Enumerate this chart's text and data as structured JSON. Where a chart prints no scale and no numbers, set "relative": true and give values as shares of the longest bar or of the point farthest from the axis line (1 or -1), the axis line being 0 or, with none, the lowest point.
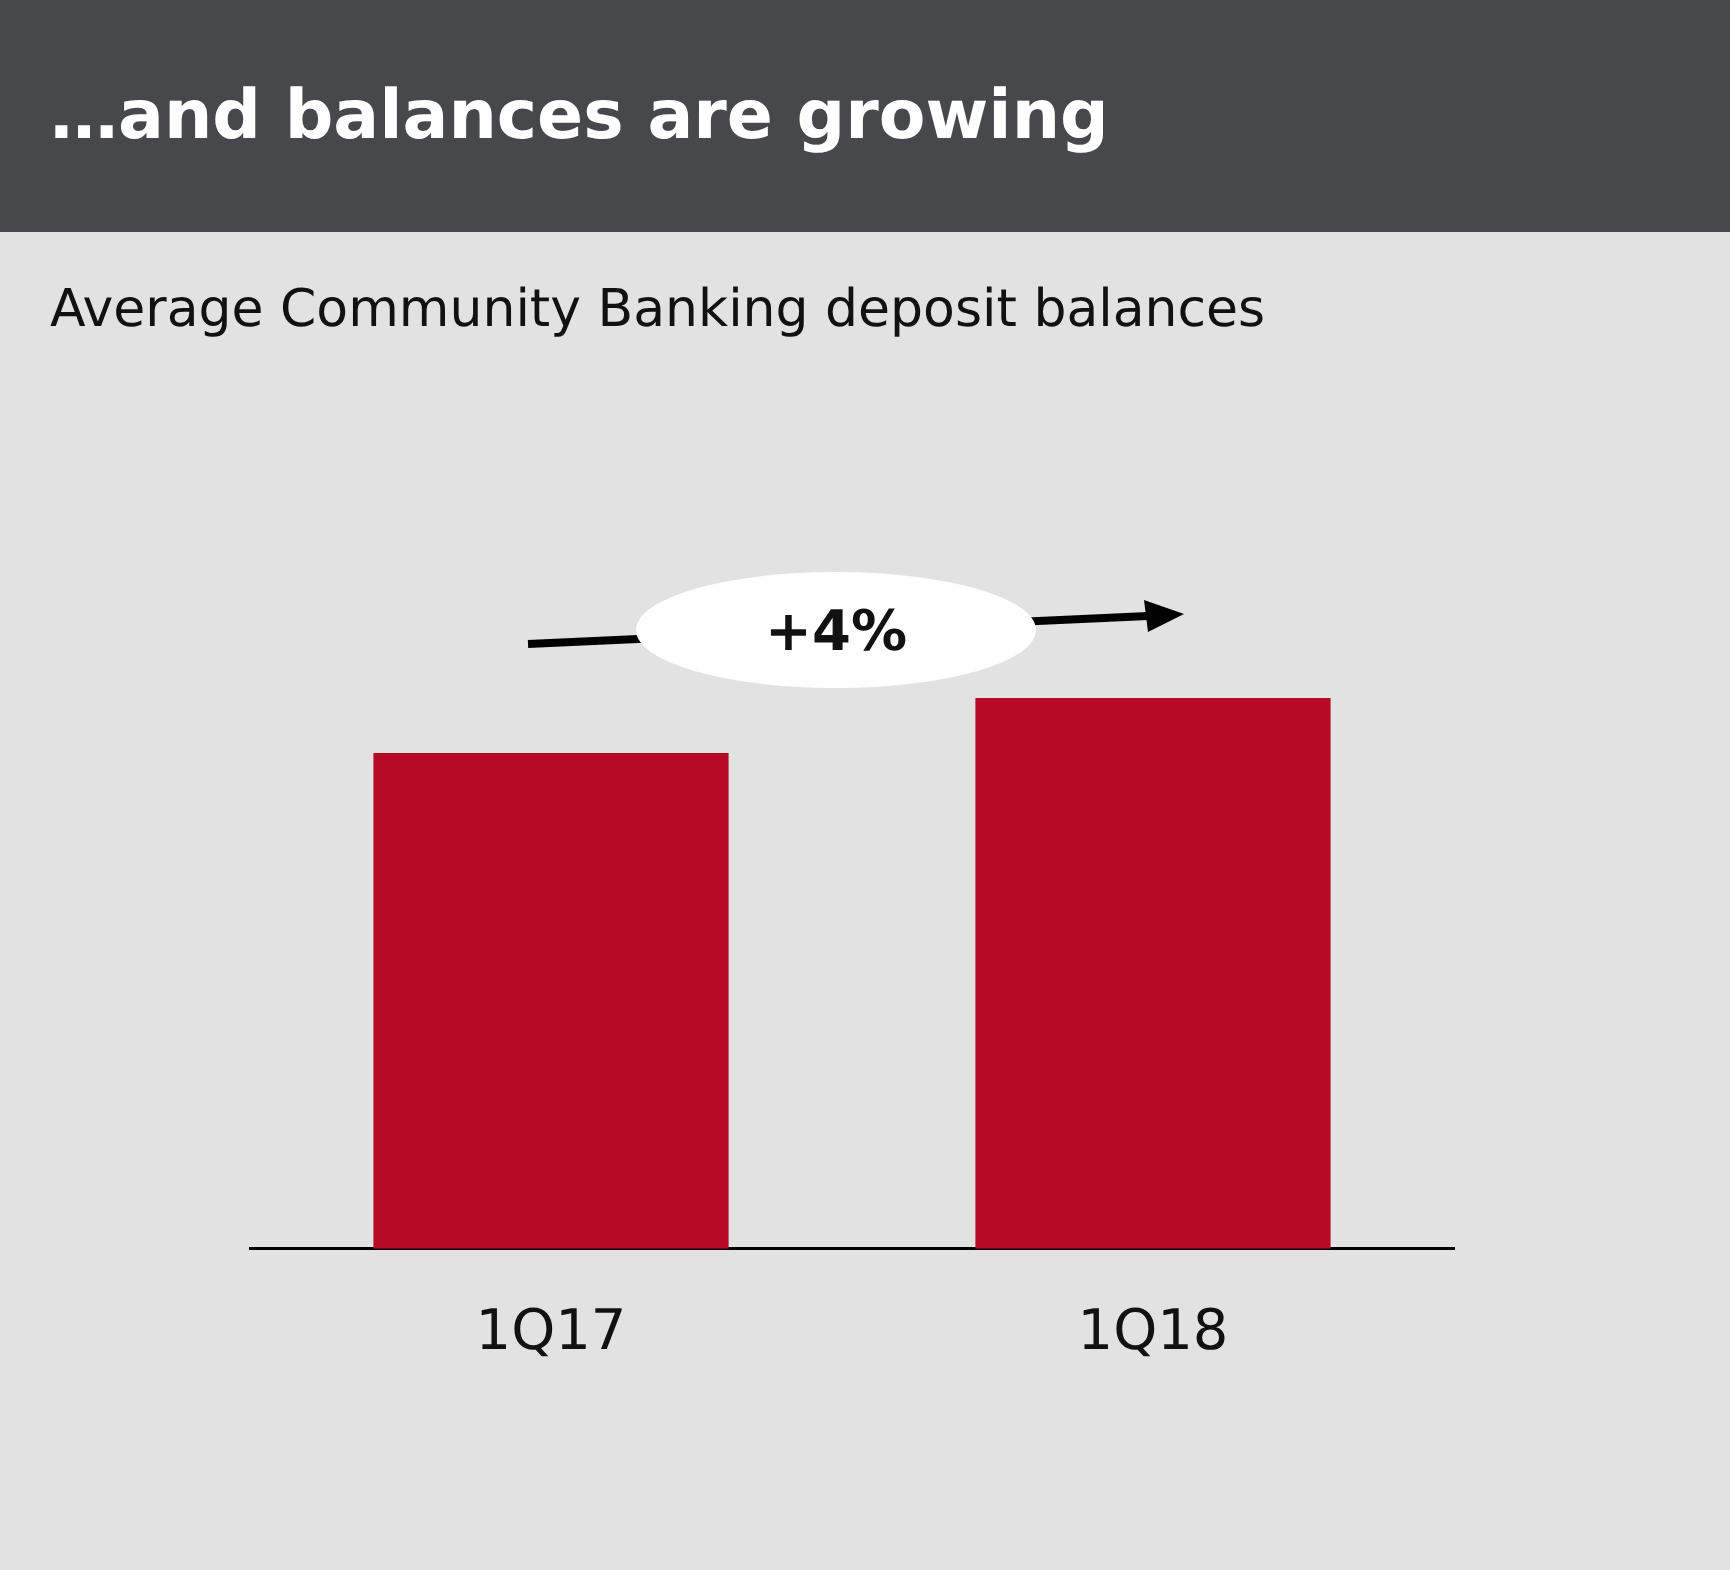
{
  "chart_data": {
    "type": "bar",
    "title": "…and balances are growing",
    "subtitle": "Average Community Banking deposit balances",
    "categories": [
      "1Q17",
      "1Q18"
    ],
    "values": [
      0.9,
      1
    ],
    "color": "#b70a26",
    "relative": true,
    "grid": false,
    "legend": false,
    "annotations": [
      "+4%"
    ]
  }
}
